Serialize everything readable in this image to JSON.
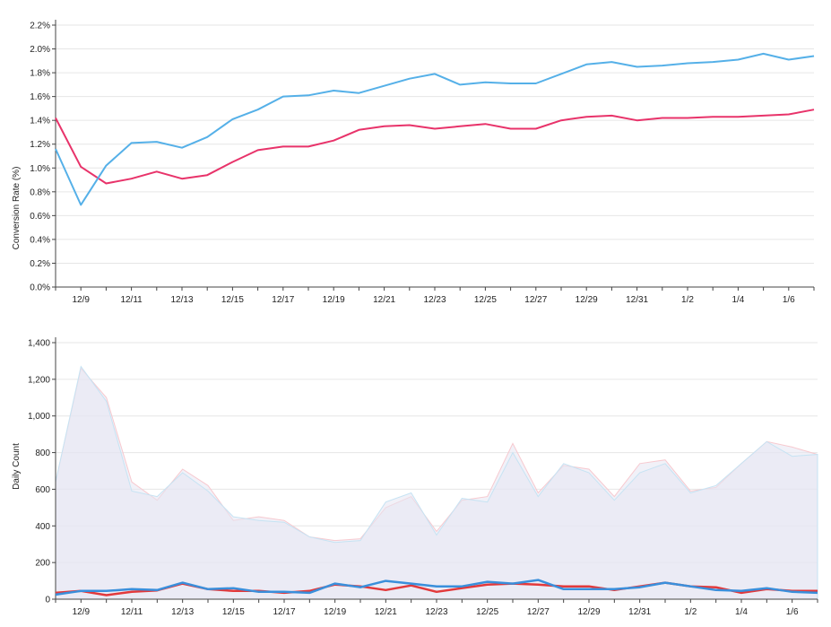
{
  "chart_data": [
    {
      "type": "line",
      "title": "",
      "ylabel": "Conversion Rate (%)",
      "xlabel": "",
      "x_tick_labels": [
        "12/9",
        "12/11",
        "12/13",
        "12/15",
        "12/17",
        "12/19",
        "12/21",
        "12/23",
        "12/25",
        "12/27",
        "12/29",
        "12/31",
        "1/2",
        "1/4",
        "1/6"
      ],
      "y_tick_labels": [
        "0.0%",
        "0.2%",
        "0.4%",
        "0.6%",
        "0.8%",
        "1.0%",
        "1.2%",
        "1.4%",
        "1.6%",
        "1.8%",
        "2.0%",
        "2.2%"
      ],
      "ylim": [
        0,
        2.2
      ],
      "grid": "horizontal",
      "colors": {
        "series_a": "#e8336a",
        "series_b": "#55b0e8"
      },
      "series": [
        {
          "values": [
            1.42,
            1.01,
            0.87,
            0.91,
            0.97,
            0.91,
            0.94,
            1.05,
            1.15,
            1.18,
            1.18,
            1.23,
            1.32,
            1.35,
            1.36,
            1.33,
            1.35,
            1.37,
            1.33,
            1.33,
            1.4,
            1.43,
            1.44,
            1.4,
            1.42,
            1.42,
            1.43,
            1.43,
            1.44,
            1.45,
            1.49
          ]
        },
        {
          "values": [
            1.16,
            0.69,
            1.02,
            1.21,
            1.22,
            1.17,
            1.26,
            1.41,
            1.49,
            1.6,
            1.61,
            1.65,
            1.63,
            1.69,
            1.75,
            1.79,
            1.7,
            1.72,
            1.71,
            1.71,
            1.79,
            1.87,
            1.89,
            1.85,
            1.86,
            1.88,
            1.89,
            1.91,
            1.96,
            1.91,
            1.94
          ]
        }
      ]
    },
    {
      "type": "area",
      "title": "",
      "ylabel": "Daily Count",
      "xlabel": "",
      "x_tick_labels": [
        "12/9",
        "12/11",
        "12/13",
        "12/15",
        "12/17",
        "12/19",
        "12/21",
        "12/23",
        "12/25",
        "12/27",
        "12/29",
        "12/31",
        "1/2",
        "1/4",
        "1/6"
      ],
      "y_tick_labels": [
        "0",
        "200",
        "400",
        "600",
        "800",
        "1,000",
        "1,200",
        "1,400"
      ],
      "ylim": [
        0,
        1400
      ],
      "grid": "horizontal",
      "colors": {
        "area_a": "#f7c9cf",
        "area_b": "#c6e3f3",
        "area_fill": "#e6e6f2",
        "line_a": "#e2393b",
        "line_b": "#3a8fdb"
      },
      "series": [
        {
          "kind": "area",
          "values": [
            640,
            1260,
            1100,
            640,
            540,
            710,
            620,
            430,
            450,
            430,
            340,
            320,
            330,
            500,
            560,
            370,
            540,
            560,
            850,
            580,
            730,
            710,
            560,
            740,
            760,
            590,
            610,
            740,
            860,
            830,
            790
          ]
        },
        {
          "kind": "area",
          "values": [
            640,
            1270,
            1080,
            590,
            560,
            690,
            590,
            450,
            430,
            420,
            340,
            310,
            320,
            530,
            580,
            350,
            550,
            530,
            800,
            560,
            740,
            690,
            540,
            690,
            740,
            580,
            620,
            740,
            860,
            780,
            790
          ]
        },
        {
          "kind": "line",
          "values": [
            35,
            45,
            22,
            40,
            48,
            85,
            55,
            45,
            45,
            35,
            45,
            80,
            70,
            50,
            75,
            40,
            60,
            80,
            85,
            80,
            70,
            70,
            50,
            70,
            90,
            70,
            65,
            35,
            55,
            45,
            45
          ]
        },
        {
          "kind": "line",
          "values": [
            25,
            45,
            45,
            55,
            50,
            90,
            55,
            60,
            40,
            40,
            35,
            85,
            65,
            100,
            85,
            70,
            70,
            95,
            85,
            105,
            55,
            55,
            55,
            65,
            90,
            70,
            50,
            45,
            60,
            40,
            35
          ]
        }
      ]
    }
  ]
}
